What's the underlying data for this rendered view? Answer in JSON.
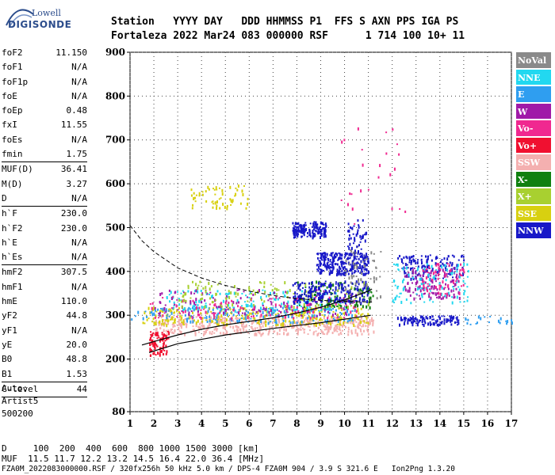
{
  "logo": {
    "line1": "Lowell",
    "line2": "DIGISONDE"
  },
  "header": {
    "line1": "Station   YYYY DAY   DDD HHMMSS P1  FFS S AXN PPS IGA PS",
    "line2": "Fortaleza 2022 Mar24 083 000000 RSF      1 714 100 10+ 11"
  },
  "params": [
    {
      "key": "foF2",
      "value": "11.150"
    },
    {
      "key": "foF1",
      "value": "N/A"
    },
    {
      "key": "foF1p",
      "value": "N/A"
    },
    {
      "key": "foE",
      "value": "N/A"
    },
    {
      "key": "foEp",
      "value": "0.48"
    },
    {
      "key": "fxI",
      "value": "11.55"
    },
    {
      "key": "foEs",
      "value": "N/A"
    },
    {
      "key": "fmin",
      "value": "1.75",
      "sep": true
    },
    {
      "key": "MUF(D)",
      "value": "36.41"
    },
    {
      "key": "M(D)",
      "value": "3.27"
    },
    {
      "key": "D",
      "value": "N/A",
      "sep": true
    },
    {
      "key": "h`F",
      "value": "230.0"
    },
    {
      "key": "h`F2",
      "value": "230.0"
    },
    {
      "key": "h`E",
      "value": "N/A"
    },
    {
      "key": "h`Es",
      "value": "N/A",
      "sep": true
    },
    {
      "key": "hmF2",
      "value": "307.5"
    },
    {
      "key": "hmF1",
      "value": "N/A"
    },
    {
      "key": "hmE",
      "value": "110.0"
    },
    {
      "key": "yF2",
      "value": "44.8"
    },
    {
      "key": "yF1",
      "value": "N/A"
    },
    {
      "key": "yE",
      "value": "20.0"
    },
    {
      "key": "B0",
      "value": "48.8"
    },
    {
      "key": "B1",
      "value": "1.53",
      "sep": true
    },
    {
      "key": "C-level",
      "value": "44",
      "sep": true
    }
  ],
  "auto": {
    "line1": "Auto:",
    "line2": "Artist5",
    "line3": "500200"
  },
  "legend": [
    {
      "label": "NoVal",
      "color": "#8a8a8a"
    },
    {
      "label": "NNE",
      "color": "#22d8f0"
    },
    {
      "label": "E",
      "color": "#2f9ef0"
    },
    {
      "label": "W",
      "color": "#a01aa8"
    },
    {
      "label": "Vo-",
      "color": "#f02890"
    },
    {
      "label": "Vo+",
      "color": "#f01030"
    },
    {
      "label": "SSW",
      "color": "#f4b0b0"
    },
    {
      "label": "X-",
      "color": "#108010"
    },
    {
      "label": "X+",
      "color": "#a8d030"
    },
    {
      "label": "SSE",
      "color": "#d8d010"
    },
    {
      "label": "NNW",
      "color": "#1818c8"
    }
  ],
  "footer": {
    "line1": "D     100  200  400  600  800 1000 1500 3000 [km]",
    "line2": "MUF  11.5 11.7 12.2 13.2 14.5 16.4 22.0 36.4 [MHz]",
    "line3": "FZA0M_2022083000000.RSF / 320fx256h 50 kHz 5.0 km / DPS-4 FZA0M 904 / 3.9 S 321.6 E   Ion2Png 1.3.20"
  },
  "chart_data": {
    "type": "scatter",
    "x_range": [
      1,
      17
    ],
    "y_range": [
      80,
      900
    ],
    "x_ticks": [
      "1",
      "2",
      "3",
      "4",
      "5",
      "6",
      "7",
      "8",
      "9",
      "10",
      "11",
      "12",
      "13",
      "14",
      "15",
      "16",
      "17"
    ],
    "y_ticks": [
      "80",
      "200",
      "300",
      "400",
      "500",
      "600",
      "700",
      "800",
      "900"
    ],
    "grid": true,
    "x_unit": "MHz",
    "y_unit": "km",
    "lines": {
      "f2_trace": [
        [
          1.5,
          232
        ],
        [
          2.0,
          240
        ],
        [
          3.0,
          255
        ],
        [
          4.0,
          268
        ],
        [
          5.0,
          278
        ],
        [
          6.0,
          286
        ],
        [
          7.0,
          294
        ],
        [
          8.0,
          305
        ],
        [
          9.0,
          318
        ],
        [
          10.0,
          335
        ],
        [
          11.0,
          355
        ],
        [
          11.15,
          360
        ]
      ],
      "lower_trace": [
        [
          1.8,
          215
        ],
        [
          3.0,
          235
        ],
        [
          5.0,
          255
        ],
        [
          7.0,
          270
        ],
        [
          9.0,
          283
        ],
        [
          10.5,
          295
        ],
        [
          11.1,
          300
        ]
      ],
      "profile_dashed": [
        [
          1.0,
          505
        ],
        [
          1.5,
          470
        ],
        [
          2.0,
          445
        ],
        [
          3.0,
          408
        ],
        [
          4.0,
          385
        ],
        [
          5.0,
          368
        ],
        [
          6.0,
          355
        ],
        [
          7.0,
          345
        ],
        [
          8.0,
          338
        ],
        [
          9.0,
          334
        ],
        [
          10.0,
          332
        ],
        [
          11.15,
          330
        ]
      ]
    },
    "clusters": [
      {
        "color": "#f4b0b0",
        "x": [
          2.0,
          11.2
        ],
        "y": [
          258,
          300
        ],
        "n": 500
      },
      {
        "color": "#d8d010",
        "x": [
          1.5,
          11.0
        ],
        "y": [
          280,
          320
        ],
        "n": 300
      },
      {
        "color": "#2f9ef0",
        "x": [
          1.0,
          10.5
        ],
        "y": [
          285,
          320
        ],
        "n": 180
      },
      {
        "color": "#22d8f0",
        "x": [
          2.5,
          10.0
        ],
        "y": [
          310,
          360
        ],
        "n": 150
      },
      {
        "color": "#a01aa8",
        "x": [
          1.8,
          10.5
        ],
        "y": [
          300,
          360
        ],
        "n": 150
      },
      {
        "color": "#f02890",
        "x": [
          1.8,
          10.5
        ],
        "y": [
          295,
          345
        ],
        "n": 100
      },
      {
        "color": "#f01030",
        "x": [
          1.8,
          2.6
        ],
        "y": [
          210,
          265
        ],
        "n": 80
      },
      {
        "color": "#108010",
        "x": [
          8.0,
          11.2
        ],
        "y": [
          320,
          380
        ],
        "n": 100
      },
      {
        "color": "#a8d030",
        "x": [
          3.0,
          11.0
        ],
        "y": [
          320,
          380
        ],
        "n": 120
      },
      {
        "color": "#1818c8",
        "x": [
          7.8,
          9.2
        ],
        "y": [
          480,
          515
        ],
        "n": 150
      },
      {
        "color": "#1818c8",
        "x": [
          8.8,
          11.0
        ],
        "y": [
          395,
          445
        ],
        "n": 260
      },
      {
        "color": "#1818c8",
        "x": [
          7.8,
          11.0
        ],
        "y": [
          330,
          380
        ],
        "n": 200
      },
      {
        "color": "#d8d010",
        "x": [
          3.5,
          6.0
        ],
        "y": [
          545,
          600
        ],
        "n": 60
      },
      {
        "color": "#1818c8",
        "x": [
          12.2,
          15.0
        ],
        "y": [
          385,
          440
        ],
        "n": 130
      },
      {
        "color": "#1818c8",
        "x": [
          12.2,
          14.8
        ],
        "y": [
          280,
          300
        ],
        "n": 100
      },
      {
        "color": "#a01aa8",
        "x": [
          12.5,
          14.8
        ],
        "y": [
          340,
          410
        ],
        "n": 130
      },
      {
        "color": "#22d8f0",
        "x": [
          12.0,
          15.2
        ],
        "y": [
          330,
          420
        ],
        "n": 100
      },
      {
        "color": "#f02890",
        "x": [
          13.2,
          15.0
        ],
        "y": [
          350,
          420
        ],
        "n": 60
      },
      {
        "color": "#8a8a8a",
        "x": [
          10.0,
          11.5
        ],
        "y": [
          330,
          460
        ],
        "n": 60
      },
      {
        "color": "#2f9ef0",
        "x": [
          15.0,
          17.0
        ],
        "y": [
          280,
          300
        ],
        "n": 20
      },
      {
        "color": "#f02890",
        "x": [
          9.8,
          12.6
        ],
        "y": [
          500,
          740
        ],
        "n": 25
      },
      {
        "color": "#1818c8",
        "x": [
          10.1,
          10.9
        ],
        "y": [
          430,
          520
        ],
        "n": 50
      }
    ]
  }
}
